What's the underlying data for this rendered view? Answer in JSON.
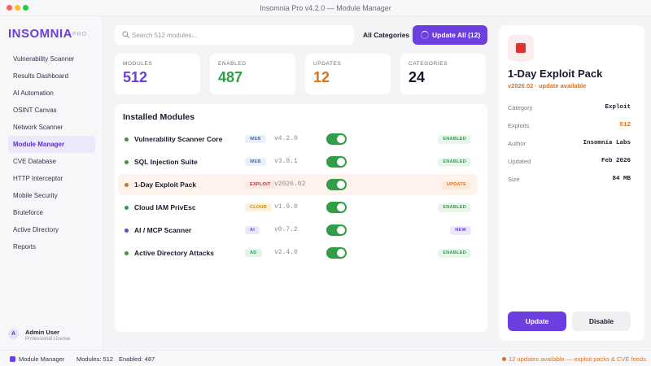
{
  "window": {
    "title": "Insomnia Pro v4.2.0 — Module Manager"
  },
  "brand": {
    "name": "INSOMNIA",
    "badge": "PRO"
  },
  "sidebar": {
    "items": [
      {
        "label": "Vulnerability Scanner",
        "active": false
      },
      {
        "label": "Results Dashboard",
        "active": false
      },
      {
        "label": "AI Automation",
        "active": false
      },
      {
        "label": "OSINT Canvas",
        "active": false
      },
      {
        "label": "Network Scanner",
        "active": false
      },
      {
        "label": "Module Manager",
        "active": true
      },
      {
        "label": "CVE Database",
        "active": false
      },
      {
        "label": "HTTP Interceptor",
        "active": false
      },
      {
        "label": "Mobile Security",
        "active": false
      },
      {
        "label": "Bruteforce",
        "active": false
      },
      {
        "label": "Active Directory",
        "active": false
      },
      {
        "label": "Reports",
        "active": false
      }
    ]
  },
  "user": {
    "initial": "A",
    "name": "Admin User",
    "role": "Professional License"
  },
  "search": {
    "placeholder": "Search 512 modules..."
  },
  "filter": {
    "label": "All Categories"
  },
  "update_all": {
    "label": "Update All (12)"
  },
  "stats": [
    {
      "caption": "MODULES",
      "value": "512",
      "color": "#6b3fe0"
    },
    {
      "caption": "ENABLED",
      "value": "487",
      "color": "#2f9e44"
    },
    {
      "caption": "UPDATES",
      "value": "12",
      "color": "#d9731f"
    },
    {
      "caption": "CATEGORIES",
      "value": "24",
      "color": "#1a1a2e"
    }
  ],
  "modules_panel": {
    "title": "Installed Modules",
    "rows": [
      {
        "name": "Vulnerability Scanner Core",
        "tag": "WEB",
        "tag_bg": "#e7f0fc",
        "tag_color": "#3b6fb6",
        "version": "v4.2.0",
        "enabled": true,
        "status": "ENABLED",
        "status_bg": "#e6f6ea",
        "status_color": "#2f9e44",
        "dot": "#2f9e44",
        "highlight": false
      },
      {
        "name": "SQL Injection Suite",
        "tag": "WEB",
        "tag_bg": "#e7f0fc",
        "tag_color": "#3b6fb6",
        "version": "v3.8.1",
        "enabled": true,
        "status": "ENABLED",
        "status_bg": "#e6f6ea",
        "status_color": "#2f9e44",
        "dot": "#2f9e44",
        "highlight": false
      },
      {
        "name": "1-Day Exploit Pack",
        "tag": "EXPLOIT",
        "tag_bg": "#fde7e7",
        "tag_color": "#c92a2a",
        "version": "v2026.02",
        "enabled": true,
        "status": "UPDATE",
        "status_bg": "#fdebd9",
        "status_color": "#d9731f",
        "dot": "#d9731f",
        "highlight": true
      },
      {
        "name": "Cloud IAM PrivEsc",
        "tag": "CLOUD",
        "tag_bg": "#fdf1d8",
        "tag_color": "#c7860a",
        "version": "v1.9.0",
        "enabled": true,
        "status": "ENABLED",
        "status_bg": "#e6f6ea",
        "status_color": "#2f9e44",
        "dot": "#2f9e44",
        "highlight": false
      },
      {
        "name": "AI / MCP Scanner",
        "tag": "AI",
        "tag_bg": "#ece7fb",
        "tag_color": "#6b3fe0",
        "version": "v0.7.2",
        "enabled": true,
        "status": "NEW",
        "status_bg": "#ece7fb",
        "status_color": "#6b3fe0",
        "dot": "#6b3fe0",
        "highlight": false
      },
      {
        "name": "Active Directory Attacks",
        "tag": "AD",
        "tag_bg": "#e3f5ea",
        "tag_color": "#2f9e44",
        "version": "v2.4.0",
        "enabled": true,
        "status": "ENABLED",
        "status_bg": "#e6f6ea",
        "status_color": "#2f9e44",
        "dot": "#2f9e44",
        "highlight": false
      }
    ]
  },
  "detail": {
    "icon": "red-square-icon",
    "title": "1-Day Exploit Pack",
    "subtitle": "v2026.02 · update available",
    "fields": [
      {
        "key": "Category",
        "value": "Exploit",
        "orange": false
      },
      {
        "key": "Exploits",
        "value": "512",
        "orange": true
      },
      {
        "key": "Author",
        "value": "Insomnia Labs",
        "orange": false
      },
      {
        "key": "Updated",
        "value": "Feb 2026",
        "orange": false
      },
      {
        "key": "Size",
        "value": "84 MB",
        "orange": false
      }
    ],
    "update_label": "Update",
    "disable_label": "Disable"
  },
  "statusbar": {
    "section": "Module Manager",
    "modules": "Modules: 512",
    "enabled": "Enabled: 487",
    "notice": "12 updates available — exploit packs & CVE feeds"
  }
}
